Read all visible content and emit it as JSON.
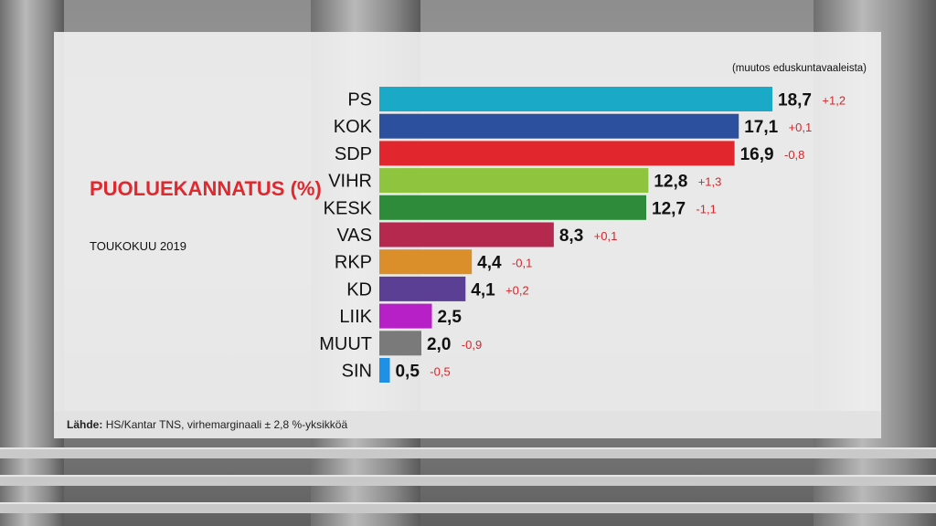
{
  "title": "PUOLUEKANNATUS (%)",
  "subtitle": "TOUKOKUU 2019",
  "note": "(muutos eduskuntavaaleista)",
  "source_label": "Lähde:",
  "source_text": "HS/Kantar TNS, virhemarginaali ± 2,8 %-yksikköä",
  "colors": {
    "title": "#e0282e",
    "change": "#d7262b",
    "PS": "#1aaac8",
    "KOK": "#2c4f9e",
    "SDP": "#e2262e",
    "VIHR": "#8fc43e",
    "KESK": "#2e8b3a",
    "VAS": "#b5294f",
    "RKP": "#da8f2a",
    "KD": "#5a3f95",
    "LIIK": "#b620c6",
    "MUUT": "#7a7a7a",
    "SIN": "#1e90e6"
  },
  "chart_data": {
    "type": "bar",
    "orientation": "horizontal",
    "categories": [
      "PS",
      "KOK",
      "SDP",
      "VIHR",
      "KESK",
      "VAS",
      "RKP",
      "KD",
      "LIIK",
      "MUUT",
      "SIN"
    ],
    "values": [
      18.7,
      17.1,
      16.9,
      12.8,
      12.7,
      8.3,
      4.4,
      4.1,
      2.5,
      2.0,
      0.5
    ],
    "value_labels": [
      "18,7",
      "17,1",
      "16,9",
      "12,8",
      "12,7",
      "8,3",
      "4,4",
      "4,1",
      "2,5",
      "2,0",
      "0,5"
    ],
    "change_labels": [
      "+1,2",
      "+0,1",
      "-0,8",
      "+1,3",
      "-1,1",
      "+0,1",
      "-0,1",
      "+0,2",
      "",
      "-0,9",
      "-0,5"
    ],
    "title": "PUOLUEKANNATUS (%)",
    "xlim": [
      0,
      18.7
    ]
  }
}
